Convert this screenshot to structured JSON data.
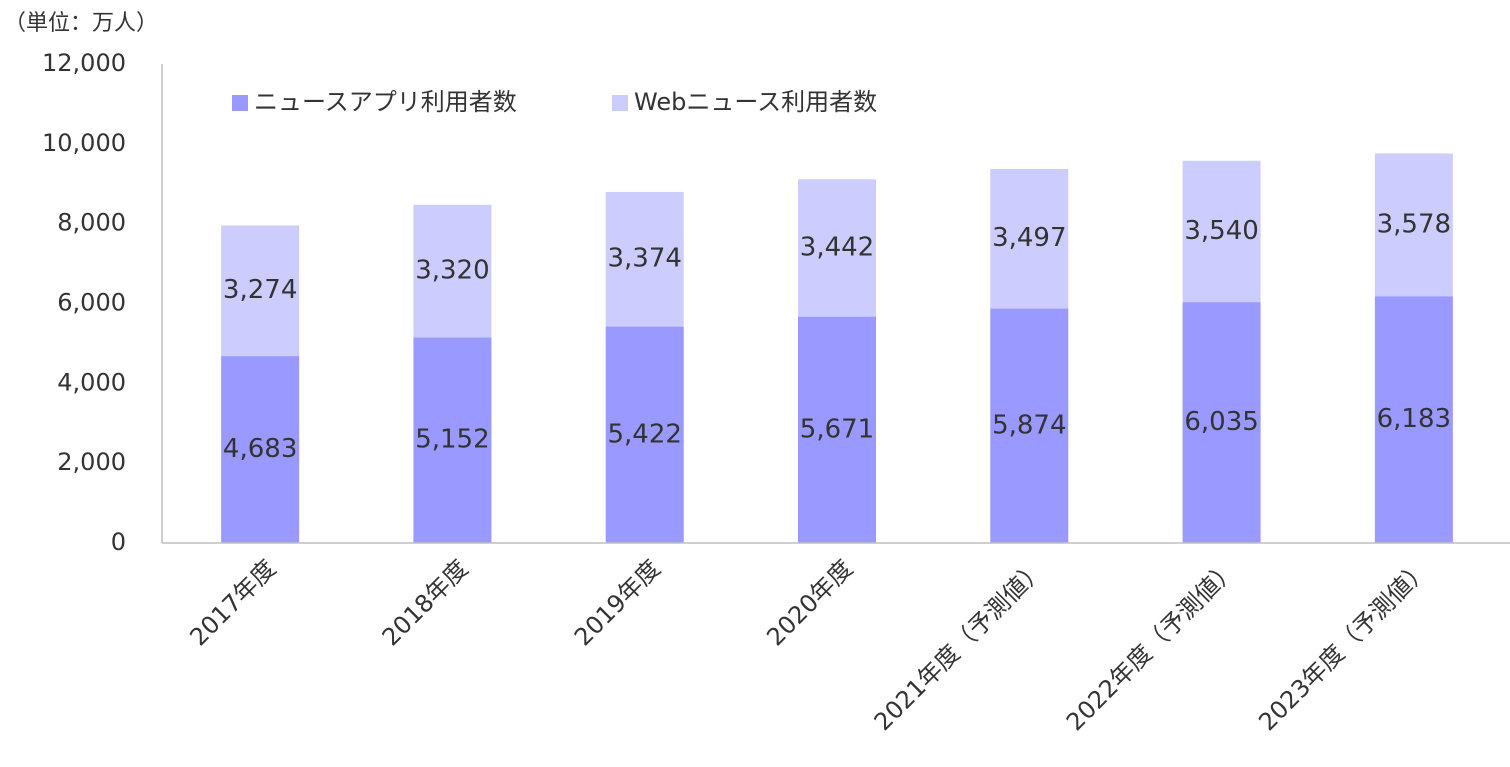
{
  "chart_data": {
    "type": "stacked_bar",
    "unit_label": "（単位：万人）",
    "categories": [
      "2017年度",
      "2018年度",
      "2019年度",
      "2020年度",
      "2021年度（予測値）",
      "2022年度（予測値）",
      "2023年度（予測値）"
    ],
    "series": [
      {
        "name": "ニュースアプリ利用者数",
        "color": "#9999ff",
        "values": [
          4683,
          5152,
          5422,
          5671,
          5874,
          6035,
          6183
        ],
        "value_labels": [
          "4,683",
          "5,152",
          "5,422",
          "5,671",
          "5,874",
          "6,035",
          "6,183"
        ]
      },
      {
        "name": "Webニュース利用者数",
        "color": "#ccccff",
        "values": [
          3274,
          3320,
          3374,
          3442,
          3497,
          3540,
          3578
        ],
        "value_labels": [
          "3,274",
          "3,320",
          "3,374",
          "3,442",
          "3,497",
          "3,540",
          "3,578"
        ]
      }
    ],
    "ylim": [
      0,
      12000
    ],
    "yticks": [
      0,
      {
        "value": 2000,
        "label": "2,000"
      },
      {
        "value": 4000,
        "label": "4,000"
      },
      {
        "value": 6000,
        "label": "6,000"
      },
      {
        "value": 8000,
        "label": "8,000"
      },
      {
        "value": 10000,
        "label": "10,000"
      },
      {
        "value": 12000,
        "label": "12,000"
      }
    ],
    "grid": false,
    "legend": "top"
  }
}
